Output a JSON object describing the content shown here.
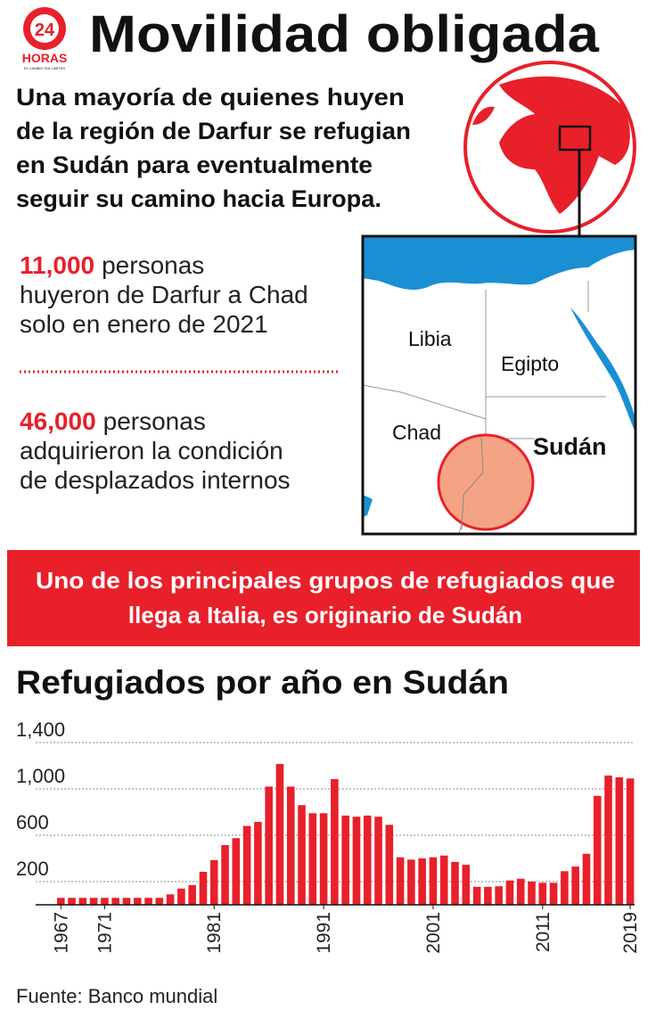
{
  "header": {
    "title": "Movilidad obligada",
    "logo_number": "24",
    "logo_text": "HORAS",
    "logo_tagline": "EL CAMBIO SIN LÍMITES"
  },
  "intro": [
    "Una mayoría de quienes huyen",
    "de la región de Darfur se refugian",
    "en Sudán para eventualmente",
    "seguir su camino hacia Europa."
  ],
  "stats": [
    {
      "number": "11,000",
      "lines": [
        "personas",
        "huyeron de Darfur a Chad",
        "solo en enero de 2021"
      ]
    },
    {
      "number": "46,000",
      "lines": [
        "personas",
        "adquirieron la condición",
        "de desplazados internos"
      ]
    }
  ],
  "map": {
    "labels": [
      "Libia",
      "Egipto",
      "Chad",
      "Sudán"
    ]
  },
  "banner": [
    "Uno de los principales grupos de refugiados que",
    "llega a Italia, es originario de Sudán"
  ],
  "chart_data": {
    "type": "bar",
    "title": "Refugiados por año en Sudán",
    "color": "#e8202a",
    "x": [
      1967,
      1968,
      1969,
      1970,
      1971,
      1972,
      1973,
      1974,
      1975,
      1976,
      1977,
      1978,
      1979,
      1980,
      1981,
      1982,
      1983,
      1984,
      1985,
      1986,
      1987,
      1988,
      1989,
      1990,
      1991,
      1992,
      1993,
      1994,
      1995,
      1996,
      1997,
      1998,
      1999,
      2000,
      2001,
      2002,
      2003,
      2004,
      2005,
      2006,
      2007,
      2008,
      2009,
      2010,
      2011,
      2012,
      2013,
      2014,
      2015,
      2016,
      2017,
      2018,
      2019
    ],
    "values": [
      60,
      60,
      60,
      60,
      60,
      60,
      60,
      60,
      60,
      60,
      90,
      140,
      170,
      285,
      385,
      515,
      575,
      680,
      715,
      1020,
      1215,
      1020,
      860,
      790,
      790,
      1085,
      770,
      760,
      770,
      760,
      690,
      410,
      390,
      400,
      410,
      425,
      370,
      345,
      155,
      155,
      160,
      210,
      225,
      200,
      190,
      190,
      290,
      330,
      440,
      940,
      1115,
      1100,
      1090
    ],
    "xlim": [
      1964.7,
      2019.4
    ],
    "xticks": [
      1967,
      1971,
      1981,
      1991,
      2001,
      2011,
      2019
    ],
    "ylim": [
      0,
      1400
    ],
    "yticks": [
      {
        "value": 200,
        "label": "200"
      },
      {
        "value": 600,
        "label": "600"
      },
      {
        "value": 1000,
        "label": "1,000"
      },
      {
        "value": 1400,
        "label": "1,400"
      }
    ],
    "grid": true
  },
  "source": "Fuente: Banco mundial"
}
